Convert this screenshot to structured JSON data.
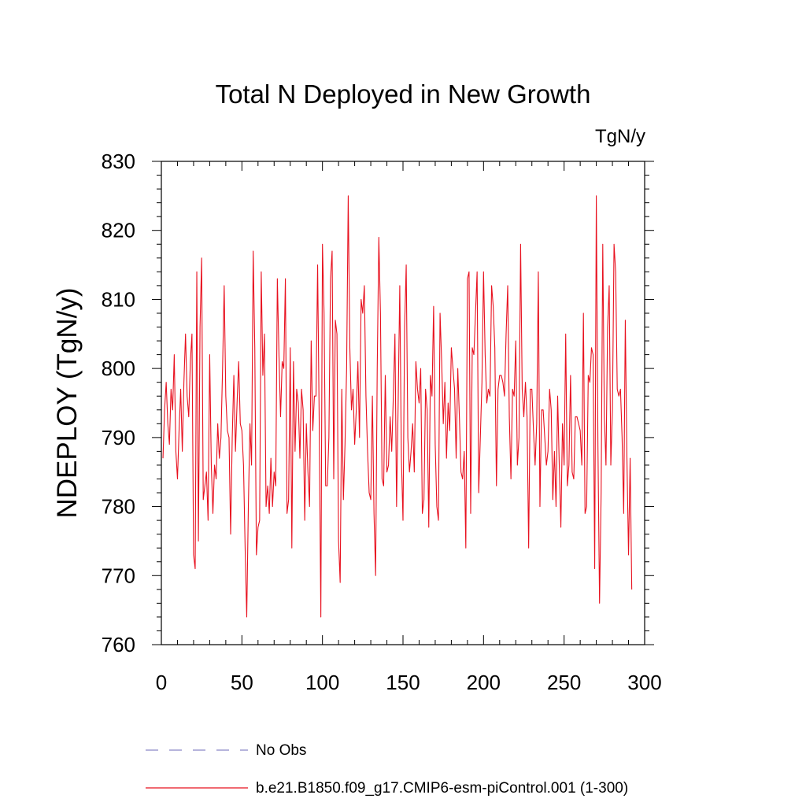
{
  "chart_data": {
    "type": "line",
    "title": "Total N Deployed in New Growth",
    "units_label": "TgN/y",
    "xlabel": "",
    "ylabel": "NDEPLOY  (TgN/y)",
    "xlim": [
      0,
      300
    ],
    "ylim": [
      760,
      830
    ],
    "x_ticks": [
      0,
      50,
      100,
      150,
      200,
      250,
      300
    ],
    "x_tick_labels": [
      "0",
      "50",
      "100",
      "150",
      "200",
      "250",
      "300"
    ],
    "y_ticks": [
      760,
      770,
      780,
      790,
      800,
      810,
      820,
      830
    ],
    "y_tick_labels": [
      "760",
      "770",
      "780",
      "790",
      "800",
      "810",
      "820",
      "830"
    ],
    "grid": false,
    "legend_position": "bottom",
    "series": [
      {
        "name": "b.e21.B1850.f09_g17.CMIP6-esm-piControl.001 (1-300)",
        "color": "#e8111f",
        "style": "solid",
        "x_start": 1,
        "x_step": 1,
        "values": [
          787,
          794,
          798,
          792,
          789,
          797,
          794,
          802,
          788,
          784,
          791,
          797,
          788,
          798,
          805,
          796,
          793,
          801,
          805,
          773,
          771,
          814,
          775,
          806,
          816,
          781,
          783,
          785,
          778,
          802,
          786,
          779,
          786,
          784,
          792,
          787,
          790,
          800,
          812,
          796,
          791,
          790,
          776,
          790,
          799,
          788,
          795,
          801,
          792,
          791,
          786,
          774,
          764,
          780,
          792,
          786,
          817,
          803,
          773,
          777,
          778,
          814,
          799,
          805,
          780,
          783,
          779,
          787,
          780,
          785,
          783,
          813,
          802,
          793,
          801,
          800,
          813,
          779,
          781,
          803,
          774,
          801,
          788,
          797,
          795,
          787,
          797,
          794,
          778,
          792,
          785,
          780,
          804,
          791,
          796,
          796,
          815,
          792,
          764,
          818,
          808,
          783,
          783,
          790,
          813,
          817,
          784,
          807,
          805,
          775,
          769,
          797,
          781,
          789,
          800,
          825,
          803,
          794,
          797,
          789,
          794,
          801,
          790,
          810,
          808,
          812,
          796,
          788,
          782,
          781,
          796,
          779,
          770,
          800,
          819,
          808,
          784,
          783,
          799,
          785,
          786,
          793,
          788,
          796,
          805,
          780,
          795,
          812,
          787,
          778,
          806,
          815,
          790,
          785,
          788,
          792,
          785,
          801,
          797,
          795,
          800,
          779,
          781,
          797,
          794,
          777,
          799,
          796,
          809,
          789,
          780,
          778,
          808,
          801,
          792,
          798,
          787,
          795,
          791,
          803,
          800,
          797,
          787,
          800,
          793,
          785,
          784,
          788,
          774,
          813,
          814,
          779,
          803,
          802,
          808,
          814,
          782,
          790,
          798,
          814,
          802,
          795,
          797,
          796,
          812,
          809,
          803,
          783,
          797,
          799,
          799,
          798,
          796,
          805,
          812,
          793,
          784,
          797,
          796,
          804,
          786,
          790,
          818,
          797,
          793,
          798,
          793,
          774,
          797,
          797,
          791,
          786,
          792,
          814,
          780,
          794,
          794,
          790,
          786,
          788,
          797,
          794,
          781,
          788,
          780,
          796,
          786,
          777,
          792,
          786,
          805,
          783,
          786,
          799,
          785,
          784,
          793,
          793,
          792,
          791,
          786,
          808,
          779,
          780,
          799,
          798,
          803,
          802,
          771,
          825,
          789,
          766,
          782,
          818,
          793,
          786,
          806,
          812,
          786,
          794,
          818,
          814,
          797,
          796,
          797,
          790,
          779,
          807,
          787,
          773,
          787,
          768
        ]
      },
      {
        "name": "No Obs",
        "color": "#8b87c8",
        "style": "dashed",
        "values": []
      }
    ]
  }
}
